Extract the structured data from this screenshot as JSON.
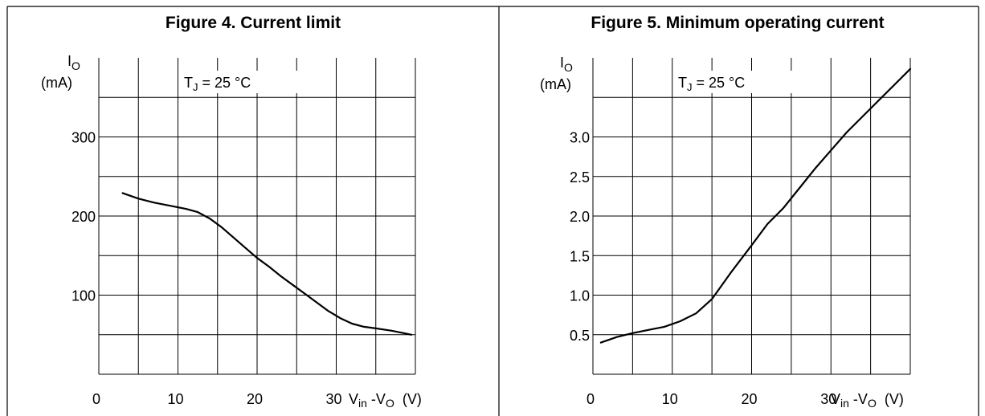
{
  "chart_data": [
    {
      "type": "line",
      "title": "Figure 4. Current limit",
      "ylabel_main": "I",
      "ylabel_sub": "O",
      "ylabel_unit": "(mA)",
      "xlabel_v1": "V",
      "xlabel_in": "in",
      "xlabel_dash": " -V",
      "xlabel_o": "O",
      "xlabel_unit": "(V)",
      "annotation_main": "T",
      "annotation_sub": "J",
      "annotation_rest": " = 25 °C",
      "xlim": [
        0,
        40
      ],
      "ylim": [
        0,
        400
      ],
      "grid": true,
      "x_ticks": [
        0,
        10,
        20,
        30
      ],
      "x_tick_labels": [
        "0",
        "10",
        "20",
        "30"
      ],
      "y_ticks": [
        100,
        200,
        300
      ],
      "y_tick_labels": [
        "100",
        "200",
        "300"
      ],
      "series": [
        {
          "x": [
            3,
            5,
            7,
            9,
            11,
            12.5,
            14,
            15.5,
            17,
            18.5,
            20,
            21.5,
            23,
            24.5,
            26,
            27.5,
            29,
            30.5,
            32,
            33.5,
            35,
            37,
            39.5
          ],
          "y": [
            229,
            222,
            217,
            213,
            209,
            205,
            197,
            186,
            173,
            160,
            147,
            136,
            124,
            113,
            102,
            91,
            80,
            71,
            64,
            60,
            58,
            55,
            50
          ]
        }
      ]
    },
    {
      "type": "line",
      "title": "Figure 5. Minimum operating current",
      "ylabel_main": "I",
      "ylabel_sub": "O",
      "ylabel_unit": "(mA)",
      "xlabel_v1": "V",
      "xlabel_in": "in",
      "xlabel_dash": " -V",
      "xlabel_o": "O",
      "xlabel_unit": "(V)",
      "annotation_main": "T",
      "annotation_sub": "J",
      "annotation_rest": " = 25 °C",
      "xlim": [
        0,
        40
      ],
      "ylim": [
        0,
        4
      ],
      "grid": true,
      "x_ticks": [
        0,
        10,
        20,
        30
      ],
      "x_tick_labels": [
        "0",
        "10",
        "20",
        "30"
      ],
      "y_ticks": [
        0.5,
        1.0,
        1.5,
        2.0,
        2.5,
        3.0
      ],
      "y_tick_labels": [
        "0.5",
        "1.0",
        "1.5",
        "2.0",
        "2.5",
        "3.0"
      ],
      "series": [
        {
          "x": [
            1,
            3,
            5,
            7,
            9,
            11,
            13,
            15,
            17.5,
            20,
            22,
            24,
            26,
            28,
            30,
            32,
            34,
            36,
            38,
            40
          ],
          "y": [
            0.4,
            0.47,
            0.52,
            0.56,
            0.6,
            0.67,
            0.77,
            0.95,
            1.3,
            1.63,
            1.9,
            2.1,
            2.35,
            2.6,
            2.83,
            3.06,
            3.26,
            3.46,
            3.66,
            3.86
          ]
        }
      ]
    }
  ]
}
